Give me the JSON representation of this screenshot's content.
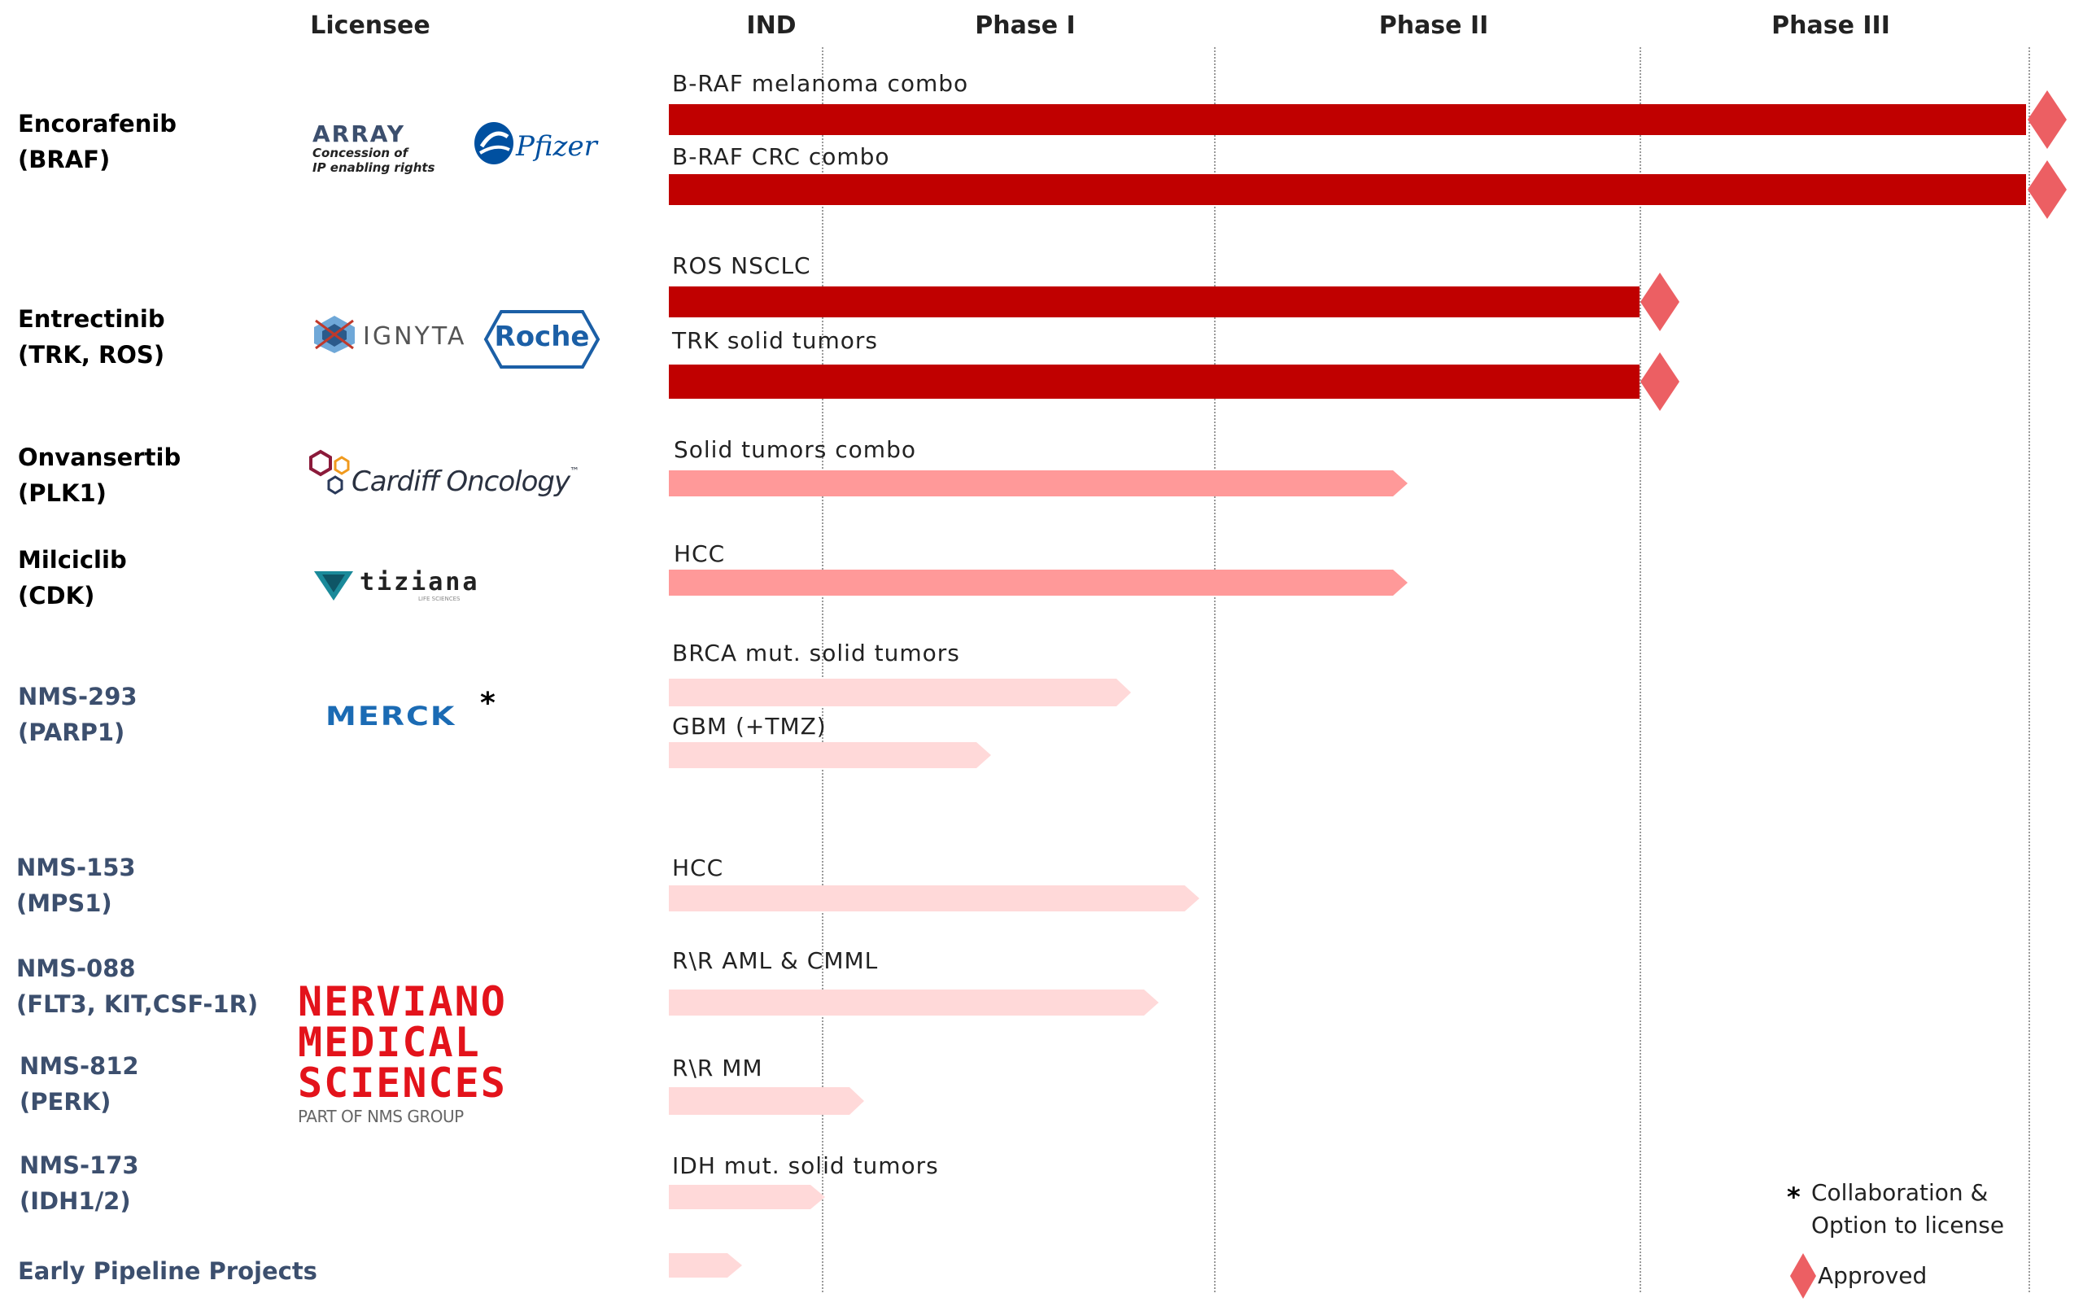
{
  "header": {
    "licensee": "Licensee",
    "ind": "IND",
    "phase1": "Phase I",
    "phase2": "Phase II",
    "phase3": "Phase III"
  },
  "colors": {
    "approved_bar": "#c00000",
    "phase2_bar": "#ff9999",
    "early_bar": "#ffd9d9",
    "diamond": "#ec5f63",
    "nms_text": "#3c4f6e"
  },
  "drugs": [
    {
      "name": "Encorafenib",
      "target": "(BRAF)",
      "group": "lic"
    },
    {
      "name": "Entrectinib",
      "target": "(TRK, ROS)",
      "group": "lic"
    },
    {
      "name": "Onvansertib",
      "target": "(PLK1)",
      "group": "lic"
    },
    {
      "name": "Milciclib",
      "target": "(CDK)",
      "group": "lic"
    },
    {
      "name": "NMS-293",
      "target": "(PARP1)",
      "group": "nms"
    },
    {
      "name": "NMS-153",
      "target": "(MPS1)",
      "group": "nms"
    },
    {
      "name": "NMS-088",
      "target": "(FLT3, KIT,CSF-1R)",
      "group": "nms"
    },
    {
      "name": "NMS-812",
      "target": "(PERK)",
      "group": "nms"
    },
    {
      "name": "NMS-173",
      "target": "(IDH1/2)",
      "group": "nms"
    },
    {
      "name": "Early Pipeline Projects",
      "target": "",
      "group": "nms"
    }
  ],
  "programs": [
    {
      "label": "B-RAF melanoma combo",
      "stage": "approved",
      "status": "Approved"
    },
    {
      "label": "B-RAF CRC combo",
      "stage": "approved",
      "status": "Approved"
    },
    {
      "label": "ROS NSCLC",
      "stage": "approved",
      "status": "Approved"
    },
    {
      "label": "TRK solid tumors",
      "stage": "approved",
      "status": "Approved"
    },
    {
      "label": "Solid tumors combo",
      "stage": "phase2"
    },
    {
      "label": "HCC",
      "stage": "phase2"
    },
    {
      "label": "BRCA mut. solid tumors",
      "stage": "early"
    },
    {
      "label": "GBM (+TMZ)",
      "stage": "early"
    },
    {
      "label": "HCC",
      "stage": "early"
    },
    {
      "label": "R\\R AML & CMML",
      "stage": "early"
    },
    {
      "label": "R\\R  MM",
      "stage": "early"
    },
    {
      "label": "IDH mut. solid tumors",
      "stage": "early"
    },
    {
      "label": "",
      "stage": "early"
    }
  ],
  "licensees": {
    "array": {
      "name": "ARRAY",
      "sub1": "Concession of",
      "sub2": "IP enabling rights"
    },
    "pfizer": "Pfizer",
    "ignyta": "IGNYTA",
    "roche": "Roche",
    "cardiff": "Cardiff Oncology",
    "cardiff_tm": "™",
    "tiziana": "tiziana",
    "tiziana_sub": "LIFE SCIENCES",
    "merck": "MERCK",
    "merck_mark": "*",
    "nerviano": [
      "NERVIANO",
      "MEDICAL",
      "SCIENCES"
    ],
    "nerviano_sub": "PART OF NMS GROUP"
  },
  "legend": {
    "asterisk": "*",
    "collab_line1": "Collaboration &",
    "collab_line2": "Option to license",
    "approved": "Approved"
  }
}
